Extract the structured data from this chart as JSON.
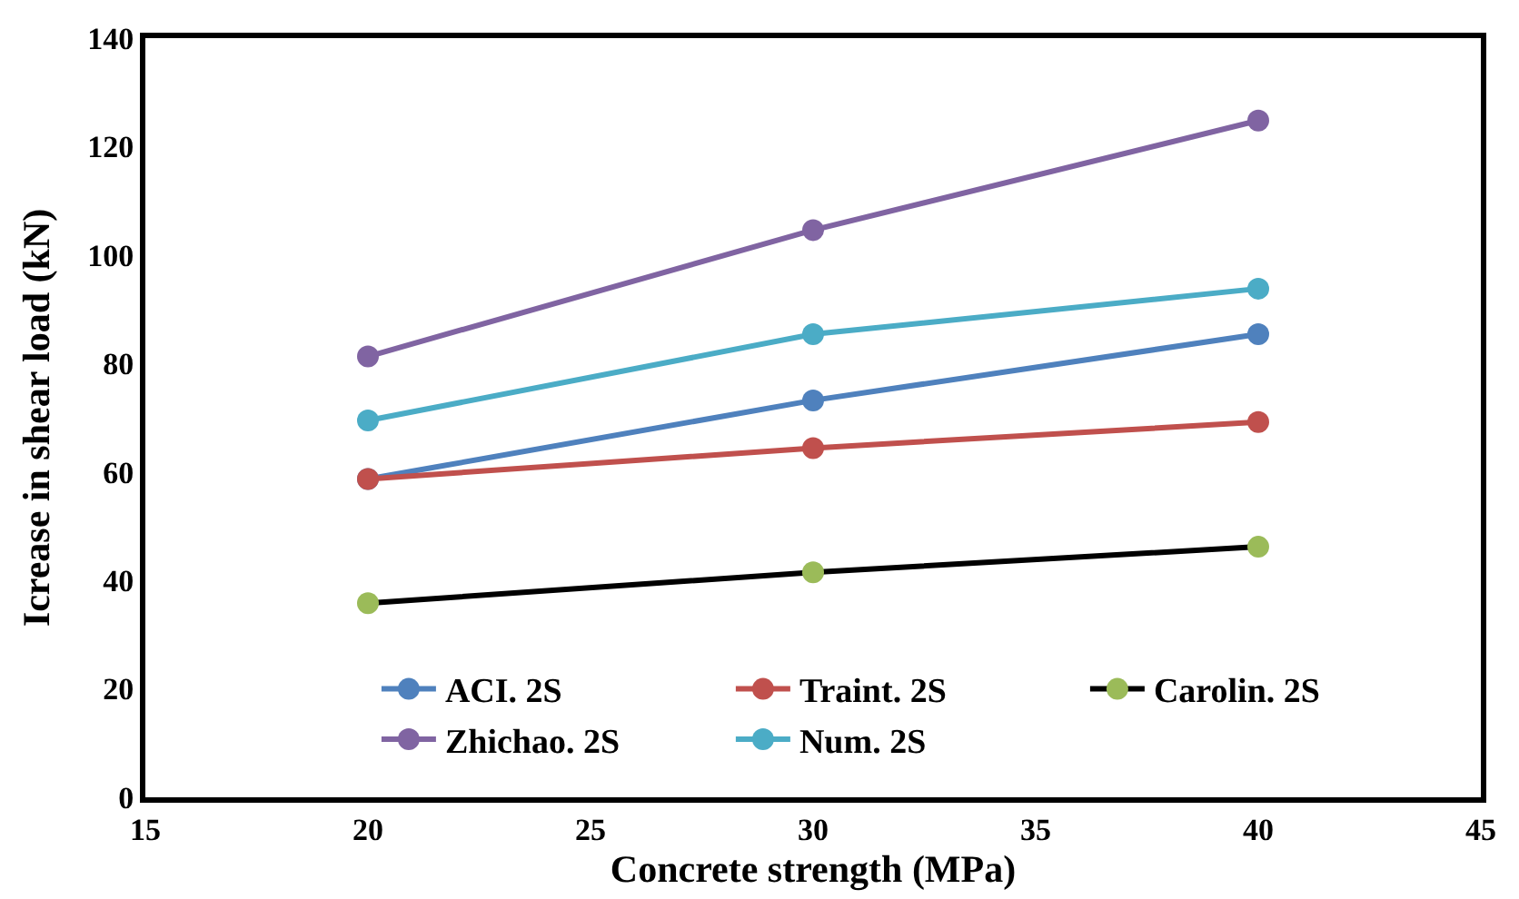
{
  "chart_data": {
    "type": "line",
    "xlabel": "Concrete strength (MPa)",
    "ylabel": "Icrease in shear load (kN)",
    "x": [
      20,
      30,
      40
    ],
    "series": [
      {
        "name": "ACI. 2S",
        "color": "#4f81bd",
        "values": [
          58.7,
          73.2,
          85.4
        ]
      },
      {
        "name": "Traint. 2S",
        "color": "#c0504d",
        "values": [
          58.7,
          64.4,
          69.2
        ]
      },
      {
        "name": "Carolin. 2S",
        "color": "#000000",
        "colors": [
          "#9bbb59",
          "#9bbb59",
          "#9bbb59"
        ],
        "values": [
          35.8,
          41.5,
          46.2
        ]
      },
      {
        "name": "Zhichao. 2S",
        "color": "#8064a2",
        "values": [
          81.3,
          104.6,
          124.8
        ]
      },
      {
        "name": "Num. 2S",
        "color": "#4bacc6",
        "values": [
          69.5,
          85.4,
          93.8
        ]
      }
    ],
    "xlim": [
      15,
      45
    ],
    "xticks": [
      15,
      20,
      25,
      30,
      35,
      40,
      45
    ],
    "ylim": [
      0,
      140
    ],
    "yticks": [
      0,
      20,
      40,
      60,
      80,
      100,
      120,
      140
    ],
    "legend": "bottom",
    "marker": "circle",
    "line_style": "solid"
  }
}
